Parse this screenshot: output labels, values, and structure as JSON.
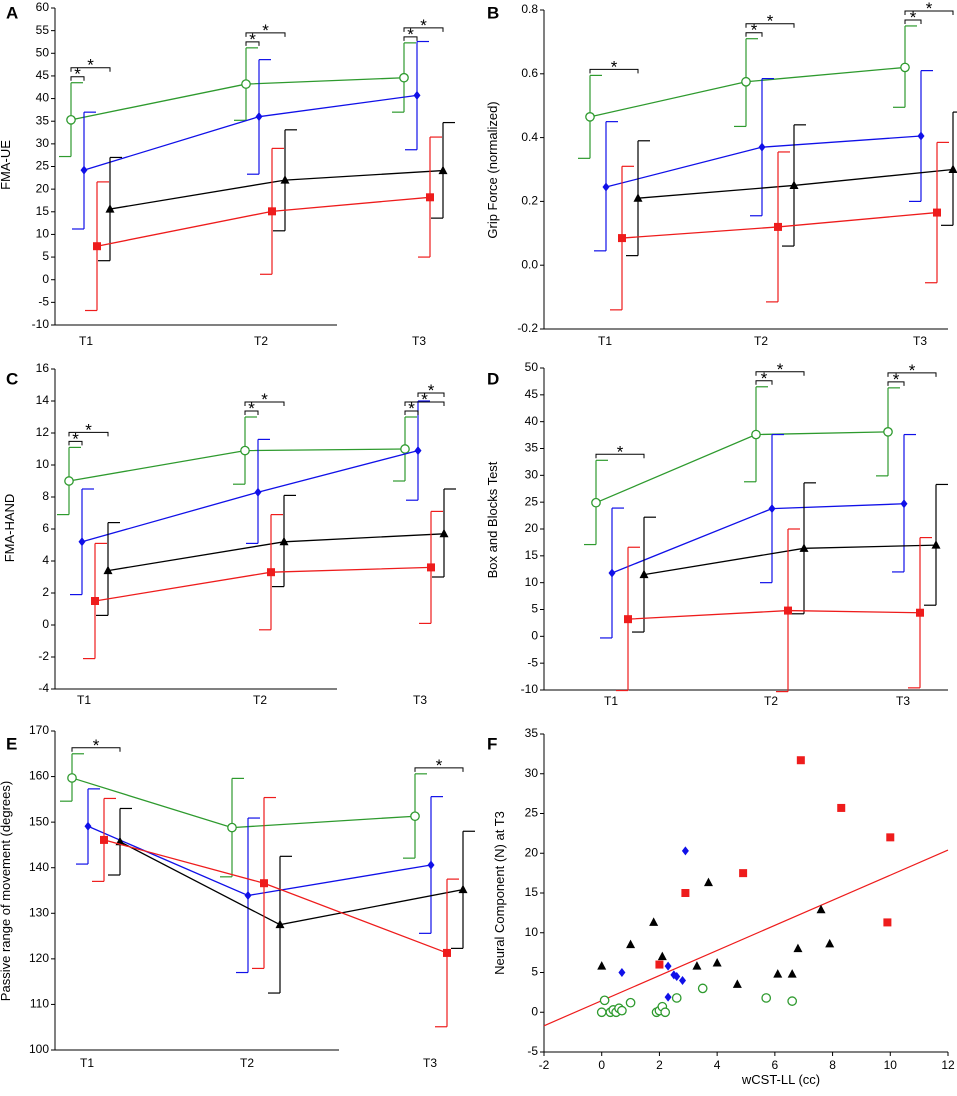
{
  "colors": {
    "green": "#2e9a2e",
    "blue": "#1010e8",
    "black": "#000000",
    "red": "#ee1c1c"
  },
  "chart_data": [
    {
      "type": "line",
      "panel_label": "A",
      "ylabel": "FMA-UE",
      "xlabel": "",
      "categories": [
        "T1",
        "T2",
        "T3"
      ],
      "ylim": [
        -10,
        60
      ],
      "yticks": [
        "-10",
        "-5",
        "0",
        "5",
        "10",
        "15",
        "20",
        "25",
        "30",
        "35",
        "40",
        "45",
        "50",
        "55",
        "60"
      ],
      "series": [
        {
          "name": "green",
          "marker": "circle",
          "values": [
            35.3,
            43.2,
            44.6
          ],
          "lower": [
            27.2,
            35.2,
            37.0
          ],
          "upper": [
            43.5,
            51.2,
            52.3
          ]
        },
        {
          "name": "blue",
          "marker": "diamond",
          "values": [
            24.2,
            36.0,
            40.7
          ],
          "lower": [
            11.2,
            23.3,
            28.7
          ],
          "upper": [
            37.0,
            48.6,
            52.6
          ]
        },
        {
          "name": "black",
          "marker": "triangle",
          "values": [
            15.6,
            22.0,
            24.1
          ],
          "lower": [
            4.2,
            10.8,
            13.6
          ],
          "upper": [
            27.0,
            33.1,
            34.7
          ]
        },
        {
          "name": "red",
          "marker": "square",
          "values": [
            7.4,
            15.1,
            18.2
          ],
          "lower": [
            -6.8,
            1.2,
            5.0
          ],
          "upper": [
            21.6,
            29.0,
            31.5
          ]
        }
      ],
      "annotations": [
        {
          "text": "*",
          "group": 0,
          "from": "green",
          "to": "blue",
          "level": 1
        },
        {
          "text": "*",
          "group": 0,
          "from": "green",
          "to": "black",
          "level": 2
        },
        {
          "text": "*",
          "group": 1,
          "from": "green",
          "to": "blue",
          "level": 1
        },
        {
          "text": "*",
          "group": 1,
          "from": "green",
          "to": "black",
          "level": 2
        },
        {
          "text": "*",
          "group": 2,
          "from": "green",
          "to": "blue",
          "level": 1
        },
        {
          "text": "*",
          "group": 2,
          "from": "green",
          "to": "black",
          "level": 2
        }
      ]
    },
    {
      "type": "line",
      "panel_label": "B",
      "ylabel": "Grip Force (normalized)",
      "xlabel": "",
      "categories": [
        "T1",
        "T2",
        "T3"
      ],
      "ylim": [
        -0.2,
        0.8
      ],
      "yticks": [
        "-0.2",
        "0.0",
        "0.2",
        "0.4",
        "0.6",
        "0.8"
      ],
      "series": [
        {
          "name": "green",
          "marker": "circle",
          "values": [
            0.465,
            0.575,
            0.62
          ],
          "lower": [
            0.335,
            0.435,
            0.495
          ],
          "upper": [
            0.595,
            0.71,
            0.75
          ]
        },
        {
          "name": "blue",
          "marker": "diamond",
          "values": [
            0.245,
            0.37,
            0.405
          ],
          "lower": [
            0.045,
            0.155,
            0.2
          ],
          "upper": [
            0.45,
            0.585,
            0.61
          ]
        },
        {
          "name": "black",
          "marker": "triangle",
          "values": [
            0.21,
            0.25,
            0.3
          ],
          "lower": [
            0.03,
            0.06,
            0.125
          ],
          "upper": [
            0.39,
            0.44,
            0.48
          ]
        },
        {
          "name": "red",
          "marker": "square",
          "values": [
            0.085,
            0.12,
            0.165
          ],
          "lower": [
            -0.14,
            -0.115,
            -0.055
          ],
          "upper": [
            0.31,
            0.355,
            0.385
          ]
        }
      ],
      "annotations": [
        {
          "text": "*",
          "group": 0,
          "from": "green",
          "to": "black",
          "level": 1
        },
        {
          "text": "*",
          "group": 1,
          "from": "green",
          "to": "blue",
          "level": 1
        },
        {
          "text": "*",
          "group": 1,
          "from": "green",
          "to": "black",
          "level": 2
        },
        {
          "text": "*",
          "group": 2,
          "from": "green",
          "to": "blue",
          "level": 1
        },
        {
          "text": "*",
          "group": 2,
          "from": "green",
          "to": "black",
          "level": 2
        }
      ]
    },
    {
      "type": "line",
      "panel_label": "C",
      "ylabel": "FMA-HAND",
      "xlabel": "",
      "categories": [
        "T1",
        "T2",
        "T3"
      ],
      "ylim": [
        -4,
        16
      ],
      "yticks": [
        "-4",
        "-2",
        "0",
        "2",
        "4",
        "6",
        "8",
        "10",
        "12",
        "14",
        "16"
      ],
      "series": [
        {
          "name": "green",
          "marker": "circle",
          "values": [
            9.0,
            10.9,
            11.0
          ],
          "lower": [
            6.9,
            8.8,
            9.0
          ],
          "upper": [
            11.1,
            13.0,
            13.0
          ]
        },
        {
          "name": "blue",
          "marker": "diamond",
          "values": [
            5.2,
            8.3,
            10.9
          ],
          "lower": [
            1.9,
            5.1,
            7.8
          ],
          "upper": [
            8.5,
            11.6,
            14.0
          ]
        },
        {
          "name": "black",
          "marker": "triangle",
          "values": [
            3.4,
            5.2,
            5.7
          ],
          "lower": [
            0.6,
            2.4,
            3.0
          ],
          "upper": [
            6.4,
            8.1,
            8.5
          ]
        },
        {
          "name": "red",
          "marker": "square",
          "values": [
            1.5,
            3.3,
            3.6
          ],
          "lower": [
            -2.1,
            -0.3,
            0.1
          ],
          "upper": [
            5.1,
            6.9,
            7.1
          ]
        }
      ],
      "annotations": [
        {
          "text": "*",
          "group": 0,
          "from": "green",
          "to": "blue",
          "level": 1
        },
        {
          "text": "*",
          "group": 0,
          "from": "green",
          "to": "black",
          "level": 2
        },
        {
          "text": "*",
          "group": 1,
          "from": "green",
          "to": "blue",
          "level": 1
        },
        {
          "text": "*",
          "group": 1,
          "from": "green",
          "to": "black",
          "level": 2
        },
        {
          "text": "*",
          "group": 2,
          "from": "green",
          "to": "blue",
          "level": 1
        },
        {
          "text": "*",
          "group": 2,
          "from": "green",
          "to": "black",
          "level": 2
        },
        {
          "text": "*",
          "group": 2,
          "from": "blue",
          "to": "black",
          "level": 3
        }
      ]
    },
    {
      "type": "line",
      "panel_label": "D",
      "ylabel": "Box and Blocks Test",
      "xlabel": "",
      "categories": [
        "T1",
        "T2",
        "T3"
      ],
      "ylim": [
        -10,
        50
      ],
      "yticks": [
        "-10",
        "-5",
        "0",
        "5",
        "10",
        "15",
        "20",
        "25",
        "30",
        "35",
        "40",
        "45",
        "50"
      ],
      "series": [
        {
          "name": "green",
          "marker": "circle",
          "values": [
            24.9,
            37.6,
            38.1
          ],
          "lower": [
            17.1,
            28.8,
            29.9
          ],
          "upper": [
            32.8,
            46.5,
            46.3
          ]
        },
        {
          "name": "blue",
          "marker": "diamond",
          "values": [
            11.8,
            23.8,
            24.7
          ],
          "lower": [
            -0.3,
            10.0,
            12.0
          ],
          "upper": [
            23.9,
            37.6,
            37.6
          ]
        },
        {
          "name": "black",
          "marker": "triangle",
          "values": [
            11.5,
            16.4,
            17.0
          ],
          "lower": [
            0.8,
            4.2,
            5.8
          ],
          "upper": [
            22.2,
            28.6,
            28.3
          ]
        },
        {
          "name": "red",
          "marker": "square",
          "values": [
            3.2,
            4.8,
            4.4
          ],
          "lower": [
            -10.1,
            -10.3,
            -9.6
          ],
          "upper": [
            16.6,
            20.0,
            18.4
          ]
        }
      ],
      "annotations": [
        {
          "text": "*",
          "group": 0,
          "from": "green",
          "to": "black",
          "level": 1
        },
        {
          "text": "*",
          "group": 1,
          "from": "green",
          "to": "blue",
          "level": 1
        },
        {
          "text": "*",
          "group": 1,
          "from": "green",
          "to": "black",
          "level": 2
        },
        {
          "text": "*",
          "group": 2,
          "from": "green",
          "to": "blue",
          "level": 1
        },
        {
          "text": "*",
          "group": 2,
          "from": "green",
          "to": "black",
          "level": 2
        }
      ]
    },
    {
      "type": "line",
      "panel_label": "E",
      "ylabel": "Passive range of  movement  (degrees)",
      "xlabel": "",
      "categories": [
        "T1",
        "T2",
        "T3"
      ],
      "ylim": [
        100,
        170
      ],
      "yticks": [
        "100",
        "110",
        "120",
        "130",
        "140",
        "150",
        "160",
        "170"
      ],
      "series": [
        {
          "name": "green",
          "marker": "circle",
          "values": [
            159.7,
            148.8,
            151.3
          ],
          "lower": [
            154.6,
            138.0,
            142.1
          ],
          "upper": [
            165.0,
            159.6,
            160.6
          ]
        },
        {
          "name": "blue",
          "marker": "diamond",
          "values": [
            149.1,
            133.9,
            140.6
          ],
          "lower": [
            140.8,
            117.0,
            125.6
          ],
          "upper": [
            157.3,
            150.9,
            155.6
          ]
        },
        {
          "name": "black",
          "marker": "triangle",
          "values": [
            145.7,
            127.5,
            135.2
          ],
          "lower": [
            138.4,
            112.5,
            122.3
          ],
          "upper": [
            153.0,
            142.5,
            148.0
          ]
        },
        {
          "name": "red",
          "marker": "square",
          "values": [
            146.1,
            136.6,
            121.3
          ],
          "lower": [
            137.0,
            117.9,
            105.1
          ],
          "upper": [
            155.2,
            155.4,
            137.5
          ]
        }
      ],
      "annotations": [
        {
          "text": "*",
          "group": 0,
          "from": "green",
          "to": "black",
          "level": 1
        },
        {
          "text": "*",
          "group": 2,
          "from": "green",
          "to": "black",
          "level": 1
        }
      ]
    },
    {
      "type": "scatter",
      "panel_label": "F",
      "xlabel": "wCST-LL (cc)",
      "ylabel": "Neural Component (N) at T3",
      "xlim": [
        -2,
        12
      ],
      "ylim": [
        -5,
        35
      ],
      "xticks": [
        "-2",
        "0",
        "2",
        "4",
        "6",
        "8",
        "10",
        "12"
      ],
      "yticks": [
        "-5",
        "0",
        "5",
        "10",
        "15",
        "20",
        "25",
        "30",
        "35"
      ],
      "series": [
        {
          "name": "red",
          "marker": "square",
          "x": [
            6.9,
            8.3,
            10.0,
            9.9,
            4.9,
            2.9,
            2.0
          ],
          "y": [
            31.7,
            25.7,
            22.0,
            11.3,
            17.5,
            15.0,
            6.0
          ]
        },
        {
          "name": "blue",
          "marker": "diamond",
          "x": [
            2.9,
            0.7,
            2.3,
            2.5,
            2.6,
            2.8,
            2.3
          ],
          "y": [
            20.3,
            5.0,
            5.8,
            4.7,
            4.5,
            4.0,
            1.9
          ]
        },
        {
          "name": "black",
          "marker": "triangle",
          "x": [
            0.0,
            1.0,
            1.8,
            2.1,
            3.3,
            3.7,
            4.0,
            4.7,
            6.1,
            6.6,
            6.8,
            7.6,
            7.9
          ],
          "y": [
            5.8,
            8.5,
            11.3,
            7.0,
            5.8,
            16.3,
            6.2,
            3.5,
            4.8,
            4.8,
            8.0,
            12.9,
            8.6
          ]
        },
        {
          "name": "green",
          "marker": "circle",
          "x": [
            0.0,
            0.1,
            0.3,
            0.4,
            0.5,
            0.6,
            0.7,
            1.0,
            1.9,
            2.0,
            2.1,
            2.2,
            2.6,
            3.5,
            5.7,
            6.6
          ],
          "y": [
            0.0,
            1.5,
            0.0,
            0.3,
            0.0,
            0.5,
            0.2,
            1.2,
            0.0,
            0.2,
            0.7,
            0.0,
            1.8,
            3.0,
            1.8,
            1.4
          ]
        }
      ],
      "regression": {
        "x": [
          -2,
          12
        ],
        "y": [
          -1.7,
          20.4
        ]
      }
    }
  ]
}
